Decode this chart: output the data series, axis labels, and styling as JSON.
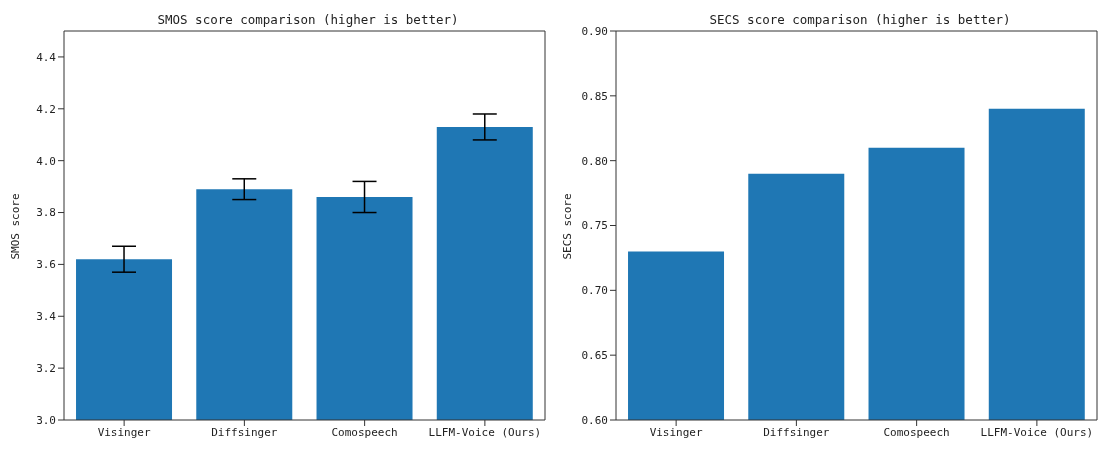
{
  "chart_data": [
    {
      "type": "bar",
      "title": "SMOS score comparison (higher is better)",
      "ylabel": "SMOS score",
      "categories": [
        "Visinger",
        "Diffsinger",
        "Comospeech",
        "LLFM-Voice (Ours)"
      ],
      "values": [
        3.62,
        3.89,
        3.86,
        4.13
      ],
      "errors": [
        0.05,
        0.04,
        0.06,
        0.05
      ],
      "color": "#1f77b4",
      "ylim": [
        3.0,
        4.5
      ],
      "yticks": [
        {
          "value": 3.0,
          "label": "3.0"
        },
        {
          "value": 3.2,
          "label": "3.2"
        },
        {
          "value": 3.4,
          "label": "3.4"
        },
        {
          "value": 3.6,
          "label": "3.6"
        },
        {
          "value": 3.8,
          "label": "3.8"
        },
        {
          "value": 4.0,
          "label": "4.0"
        },
        {
          "value": 4.2,
          "label": "4.2"
        },
        {
          "value": 4.4,
          "label": "4.4"
        }
      ],
      "grid": false,
      "legend": false
    },
    {
      "type": "bar",
      "title": "SECS score comparison (higher is better)",
      "ylabel": "SECS score",
      "categories": [
        "Visinger",
        "Diffsinger",
        "Comospeech",
        "LLFM-Voice (Ours)"
      ],
      "values": [
        0.73,
        0.79,
        0.81,
        0.84
      ],
      "color": "#1f77b4",
      "ylim": [
        0.6,
        0.9
      ],
      "yticks": [
        {
          "value": 0.6,
          "label": "0.60"
        },
        {
          "value": 0.65,
          "label": "0.65"
        },
        {
          "value": 0.7,
          "label": "0.70"
        },
        {
          "value": 0.75,
          "label": "0.75"
        },
        {
          "value": 0.8,
          "label": "0.80"
        },
        {
          "value": 0.85,
          "label": "0.85"
        },
        {
          "value": 0.9,
          "label": "0.90"
        }
      ],
      "grid": false,
      "legend": false
    }
  ]
}
